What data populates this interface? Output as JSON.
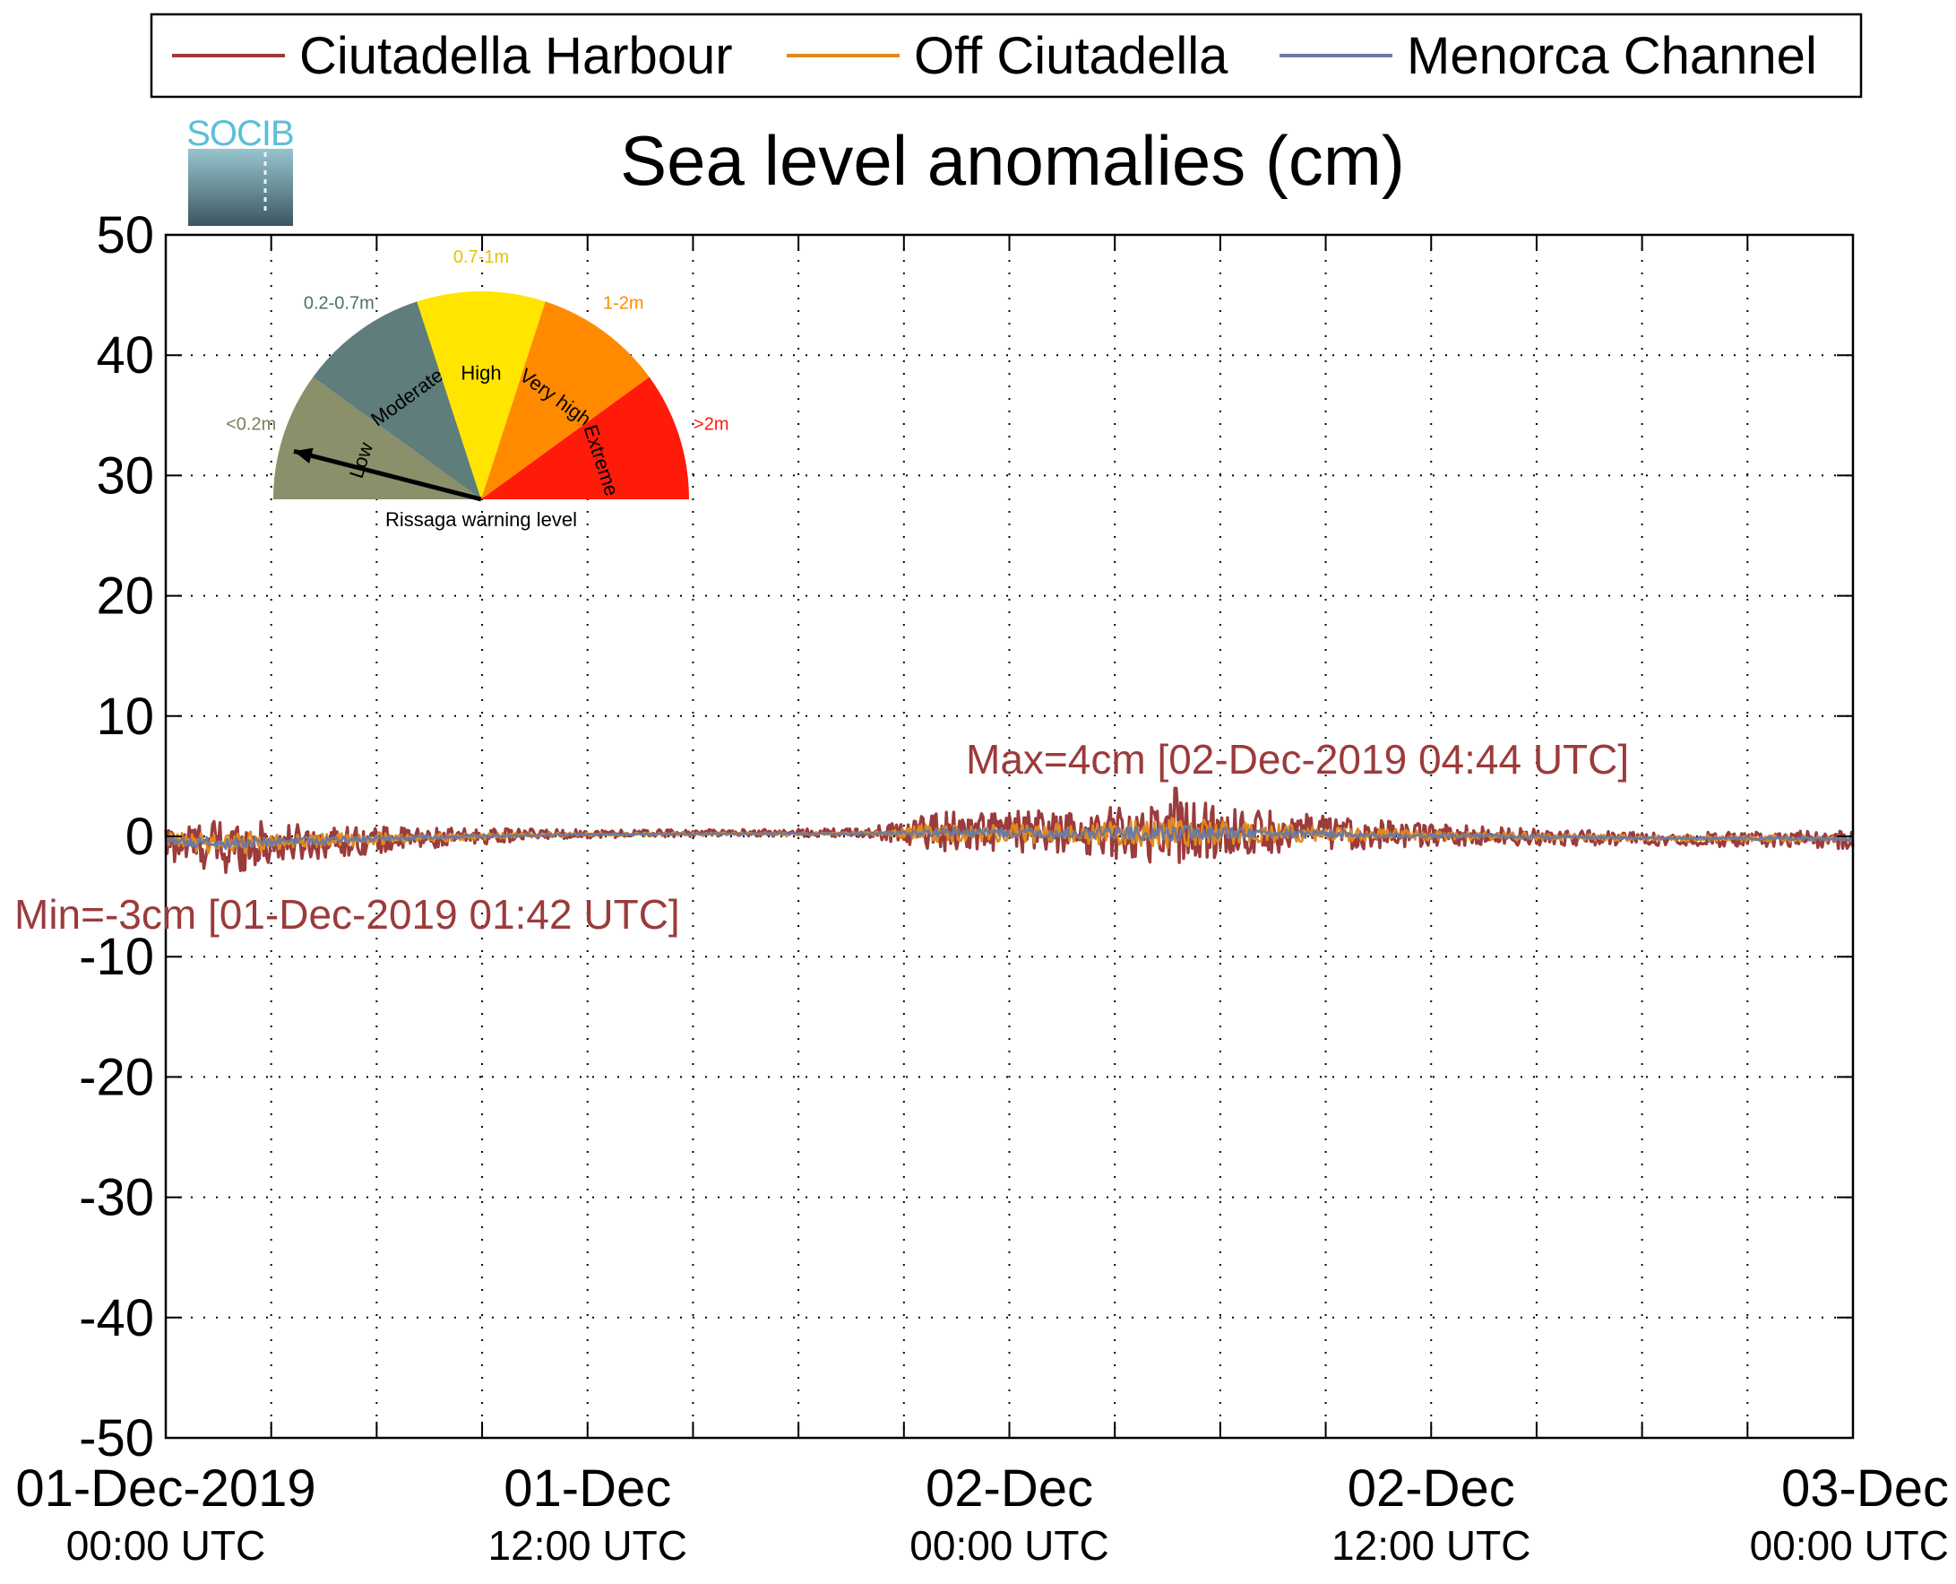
{
  "logo": {
    "text": "SOCIB",
    "color": "#5bbfd6"
  },
  "chart_data": {
    "type": "line",
    "title": "Sea level anomalies (cm)",
    "xlabel": "",
    "ylabel": "",
    "ylim": [
      -50,
      50
    ],
    "yticks": [
      -50,
      -40,
      -30,
      -20,
      -10,
      0,
      10,
      20,
      30,
      40,
      50
    ],
    "xlim": [
      "2019-12-01 00:00",
      "2019-12-03 00:00"
    ],
    "x_hours_ticks": [
      0,
      3,
      6,
      9,
      12,
      15,
      18,
      21,
      24,
      27,
      30,
      33,
      36,
      39,
      42,
      45,
      48
    ],
    "x_tick_labels": [
      {
        "date": "01-Dec-2019",
        "time": "00:00 UTC",
        "hour": 0
      },
      {
        "date": "01-Dec",
        "time": "12:00 UTC",
        "hour": 12
      },
      {
        "date": "02-Dec",
        "time": "00:00 UTC",
        "hour": 24
      },
      {
        "date": "02-Dec",
        "time": "12:00 UTC",
        "hour": 36
      },
      {
        "date": "03-Dec",
        "time": "00:00 UTC",
        "hour": 48
      }
    ],
    "grid": true,
    "legend_position": "top",
    "series": [
      {
        "name": "Ciutadella Harbour",
        "color": "#9b3b3b"
      },
      {
        "name": "Off Ciutadella",
        "color": "#e08a1e"
      },
      {
        "name": "Menorca Channel",
        "color": "#6b7aa1"
      }
    ],
    "envelope_points": [
      {
        "hour": 0,
        "amp": 1.2,
        "offset": -0.6
      },
      {
        "hour": 1.7,
        "amp": 1.8,
        "offset": -0.8
      },
      {
        "hour": 4,
        "amp": 1.1,
        "offset": -0.5
      },
      {
        "hour": 8,
        "amp": 0.6,
        "offset": -0.1
      },
      {
        "hour": 11,
        "amp": 0.3,
        "offset": 0.2
      },
      {
        "hour": 16,
        "amp": 0.2,
        "offset": 0.3
      },
      {
        "hour": 20,
        "amp": 0.3,
        "offset": 0.3
      },
      {
        "hour": 22,
        "amp": 1.3,
        "offset": 0.5
      },
      {
        "hour": 26,
        "amp": 1.4,
        "offset": 0.3
      },
      {
        "hour": 28.7,
        "amp": 2.2,
        "offset": 0.4
      },
      {
        "hour": 31,
        "amp": 1.4,
        "offset": 0.4
      },
      {
        "hour": 36,
        "amp": 0.7,
        "offset": 0.1
      },
      {
        "hour": 42,
        "amp": 0.4,
        "offset": -0.2
      },
      {
        "hour": 48,
        "amp": 0.6,
        "offset": -0.3
      }
    ],
    "annotations": {
      "max": {
        "text": "Max=4cm [02-Dec-2019 04:44 UTC]",
        "hour": 28.73,
        "value": 4
      },
      "min": {
        "text": "Min=-3cm [01-Dec-2019 01:42 UTC]",
        "hour": 1.7,
        "value": -3
      }
    },
    "annotation_color": "#9b3b3b"
  },
  "gauge": {
    "caption": "Rissaga warning level",
    "pointer_level": "Low",
    "segments": [
      {
        "name": "Low",
        "range": "<0.2m",
        "color": "#8b8f6a",
        "range_color": "#7a7d5c"
      },
      {
        "name": "Moderate",
        "range": "0.2-0.7m",
        "color": "#5f7d7b",
        "range_color": "#4e6e70"
      },
      {
        "name": "High",
        "range": "0.7-1m",
        "color": "#ffe500",
        "range_color": "#e6c300"
      },
      {
        "name": "Very high",
        "range": "1-2m",
        "color": "#ff8a00",
        "range_color": "#ff8a00"
      },
      {
        "name": "Extreme",
        "range": ">2m",
        "color": "#ff1a0a",
        "range_color": "#ff1a0a"
      }
    ]
  }
}
